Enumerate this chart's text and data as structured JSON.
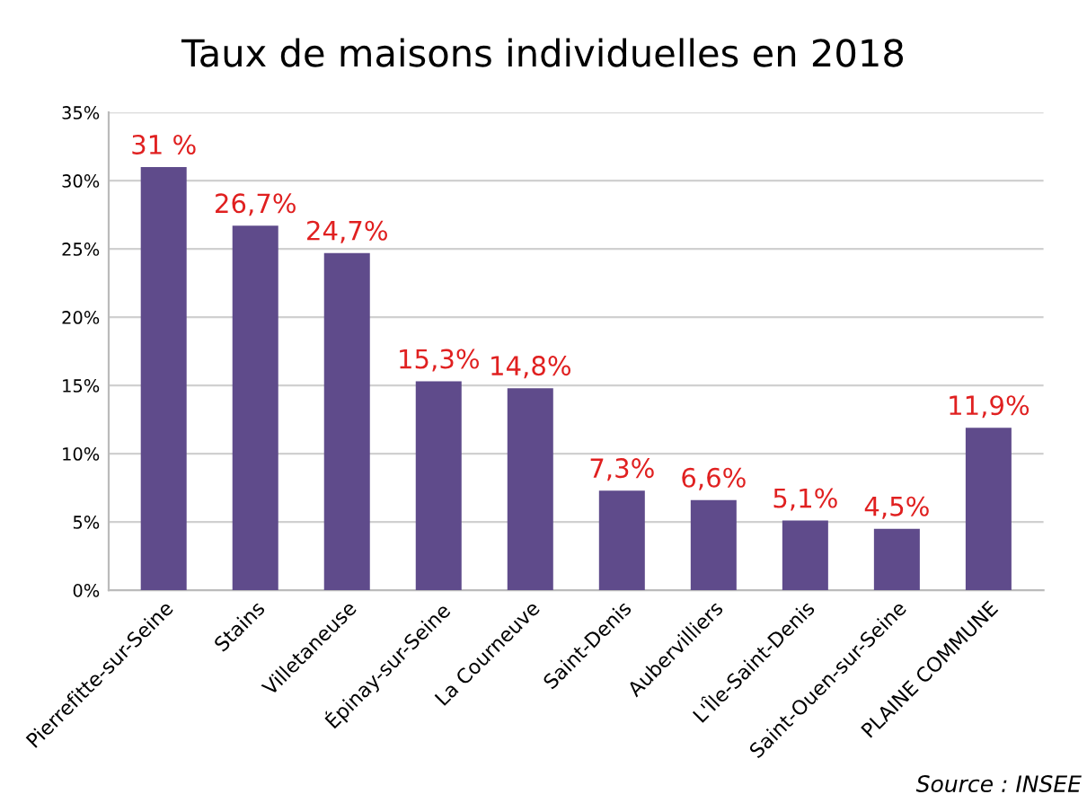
{
  "chart_data": {
    "type": "bar",
    "title": "Taux de maisons individuelles en 2018",
    "categories": [
      "Pierrefitte-sur-Seine",
      "Stains",
      "Villetaneuse",
      "Épinay-sur-Seine",
      "La Courneuve",
      "Saint-Denis",
      "Aubervilliers",
      "L'Île-Saint-Denis",
      "Saint-Ouen-sur-Seine",
      "PLAINE COMMUNE"
    ],
    "values": [
      31,
      26.7,
      24.7,
      15.3,
      14.8,
      7.3,
      6.6,
      5.1,
      4.5,
      11.9
    ],
    "value_labels": [
      "31 %",
      "26,7%",
      "24,7%",
      "15,3%",
      "14,8%",
      "7,3%",
      "6,6%",
      "5,1%",
      "4,5%",
      "11,9%"
    ],
    "color": "#5f4b8b",
    "ylim": [
      0,
      35
    ],
    "yticks": [
      {
        "value": 0,
        "label": "0%"
      },
      {
        "value": 5,
        "label": "5%"
      },
      {
        "value": 10,
        "label": "10%"
      },
      {
        "value": 15,
        "label": "15%"
      },
      {
        "value": 20,
        "label": "20%"
      },
      {
        "value": 25,
        "label": "25%"
      },
      {
        "value": 30,
        "label": "30%"
      },
      {
        "value": 35,
        "label": "35%"
      }
    ],
    "grid": "y",
    "legend": false,
    "annotations": [
      "Source : INSEE"
    ]
  }
}
